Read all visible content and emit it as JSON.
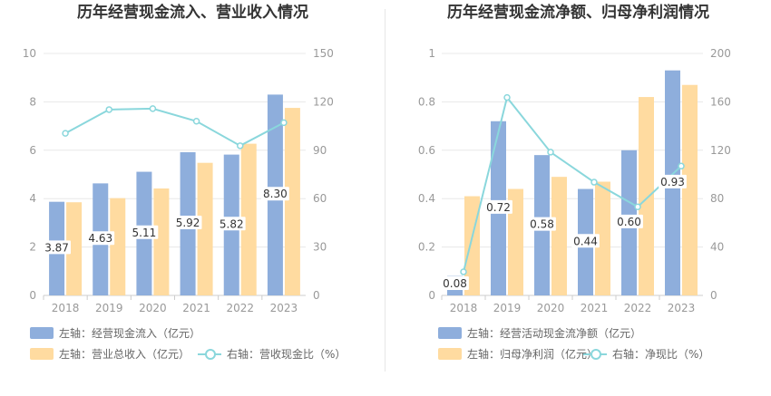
{
  "colors": {
    "bar1": "#8eaedc",
    "bar2": "#ffdba0",
    "line": "#8ad7dc",
    "grid": "#e8e8e8",
    "axis": "#999999",
    "label": "#333333"
  },
  "chart_data": [
    {
      "type": "bar",
      "title": "历年经营现金流入、营业收入情况",
      "categories": [
        "2018",
        "2019",
        "2020",
        "2021",
        "2022",
        "2023"
      ],
      "left_axis": {
        "min": 0,
        "max": 10,
        "ticks": [
          "0",
          "2",
          "4",
          "6",
          "8",
          "10"
        ]
      },
      "right_axis": {
        "min": 0,
        "max": 150,
        "ticks": [
          "0",
          "30",
          "60",
          "90",
          "120",
          "150"
        ]
      },
      "series": [
        {
          "name": "左轴：经营现金流入（亿元）",
          "kind": "bar",
          "axis": "left",
          "values": [
            3.87,
            4.63,
            5.11,
            5.92,
            5.82,
            8.3
          ],
          "labels": [
            "3.87",
            "4.63",
            "5.11",
            "5.92",
            "5.82",
            "8.30"
          ]
        },
        {
          "name": "左轴：营业总收入（亿元）",
          "kind": "bar",
          "axis": "left",
          "values": [
            3.85,
            4.02,
            4.42,
            5.48,
            6.27,
            7.75
          ]
        },
        {
          "name": "右轴：营收现金比（%）",
          "kind": "line",
          "axis": "right",
          "values": [
            100.5,
            115.2,
            115.8,
            108.0,
            92.8,
            107.1
          ]
        }
      ]
    },
    {
      "type": "bar",
      "title": "历年经营现金流净额、归母净利润情况",
      "categories": [
        "2018",
        "2019",
        "2020",
        "2021",
        "2022",
        "2023"
      ],
      "left_axis": {
        "min": 0,
        "max": 1,
        "ticks": [
          "0",
          "0.2",
          "0.4",
          "0.6",
          "0.8",
          "1"
        ]
      },
      "right_axis": {
        "min": 0,
        "max": 200,
        "ticks": [
          "0",
          "40",
          "80",
          "120",
          "160",
          "200"
        ]
      },
      "series": [
        {
          "name": "左轴：经营活动现金流净额（亿元）",
          "kind": "bar",
          "axis": "left",
          "values": [
            0.08,
            0.72,
            0.58,
            0.44,
            0.6,
            0.93
          ],
          "labels": [
            "0.08",
            "0.72",
            "0.58",
            "0.44",
            "0.60",
            "0.93"
          ]
        },
        {
          "name": "左轴：归母净利润（亿元）",
          "kind": "bar",
          "axis": "left",
          "values": [
            0.41,
            0.44,
            0.49,
            0.47,
            0.82,
            0.87
          ]
        },
        {
          "name": "右轴：净现比（%）",
          "kind": "line",
          "axis": "right",
          "values": [
            19.5,
            163.6,
            118.4,
            93.6,
            73.2,
            106.9
          ]
        }
      ]
    }
  ]
}
